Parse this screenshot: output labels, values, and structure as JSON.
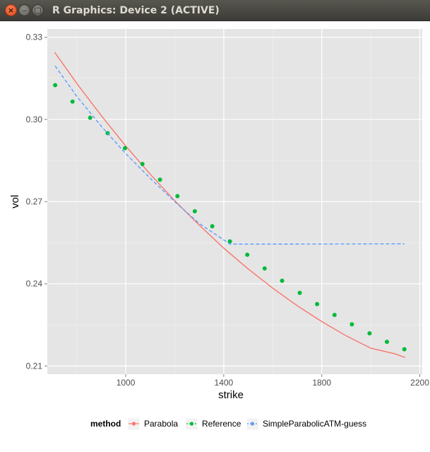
{
  "window": {
    "title": "R Graphics: Device 2 (ACTIVE)",
    "close_glyph": "×",
    "minimize_glyph": "–",
    "maximize_glyph": "□"
  },
  "chart_data": {
    "type": "line",
    "xlabel": "strike",
    "ylabel": "vol",
    "xlim": [
      680,
      2210
    ],
    "ylim": [
      0.207,
      0.333
    ],
    "x_ticks": [
      1000,
      1400,
      1800,
      2200
    ],
    "x_tick_labels": [
      "1000",
      "1400",
      "1800",
      "2200"
    ],
    "y_ticks": [
      0.21,
      0.24,
      0.27,
      0.3,
      0.33
    ],
    "y_tick_labels": [
      "0.21",
      "0.24",
      "0.27",
      "0.30",
      "0.33"
    ],
    "panel_background": "#e5e5e5",
    "grid": true,
    "legend": {
      "position": "bottom",
      "title": "method",
      "entries": [
        "Parabola",
        "Reference",
        "SimpleParabolicATM-guess"
      ]
    },
    "series": [
      {
        "name": "Parabola",
        "style": "solid line",
        "color": "#f8766d",
        "x": [
          710,
          800,
          900,
          1000,
          1100,
          1200,
          1300,
          1400,
          1500,
          1600,
          1700,
          1800,
          1900,
          2000,
          2100,
          2140
        ],
        "y": [
          0.3245,
          0.3132,
          0.3014,
          0.2903,
          0.28,
          0.2703,
          0.2614,
          0.253,
          0.2454,
          0.2384,
          0.232,
          0.2262,
          0.221,
          0.2165,
          0.2144,
          0.2131
        ]
      },
      {
        "name": "Reference",
        "style": "points",
        "color": "#00ba38",
        "x": [
          712,
          783,
          855,
          926,
          997,
          1068,
          1140,
          1211,
          1282,
          1353,
          1425,
          1496,
          1567,
          1638,
          1710,
          1781,
          1852,
          1923,
          1995,
          2066,
          2137
        ],
        "y": [
          0.3125,
          0.3065,
          0.3006,
          0.295,
          0.2895,
          0.2837,
          0.278,
          0.272,
          0.2665,
          0.261,
          0.2555,
          0.2506,
          0.2456,
          0.2411,
          0.2367,
          0.2326,
          0.2286,
          0.2252,
          0.2219,
          0.2188,
          0.2161
        ]
      },
      {
        "name": "SimpleParabolicATM-guess",
        "style": "dashed line",
        "color": "#619cff",
        "x": [
          712,
          800,
          900,
          1000,
          1100,
          1200,
          1300,
          1425,
          1700,
          2137
        ],
        "y": [
          0.3195,
          0.3085,
          0.2975,
          0.2875,
          0.2785,
          0.27,
          0.262,
          0.2545,
          0.2545,
          0.2546
        ]
      }
    ]
  }
}
